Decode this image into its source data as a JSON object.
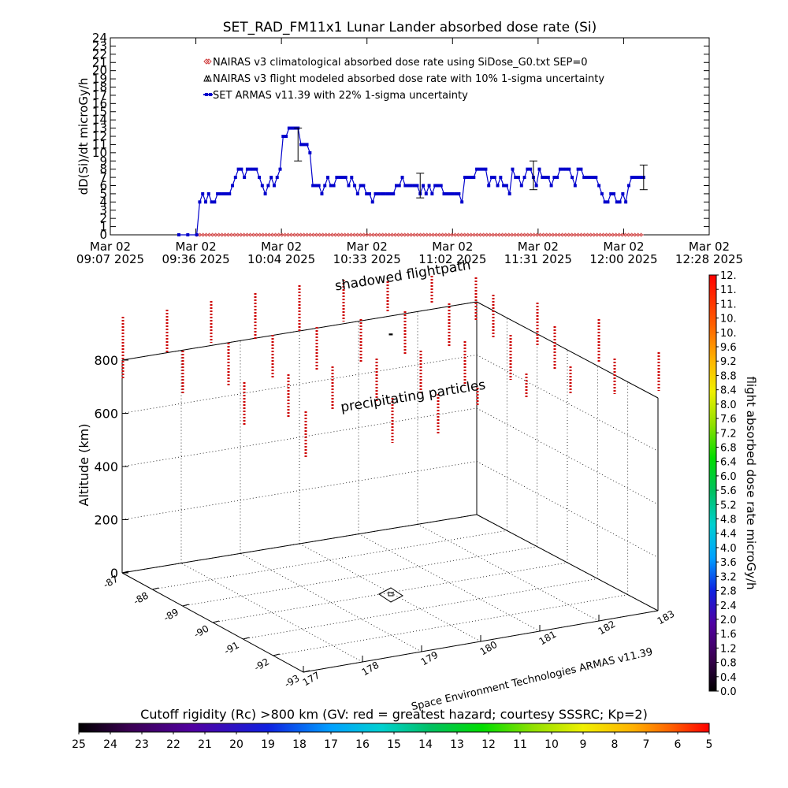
{
  "title": "SET_RAD_FM11x1  Lunar Lander absorbed dose rate (Si)",
  "chart_data": [
    {
      "type": "line",
      "ylabel": "dD(Si)/dt microGy/h",
      "ylim": [
        0,
        24
      ],
      "yticks": [
        "0",
        "1",
        "2",
        "3",
        "4",
        "5",
        "6",
        "7",
        "8",
        "9",
        "10",
        "11",
        "12",
        "13",
        "14",
        "15",
        "16",
        "17",
        "18",
        "19",
        "20",
        "21",
        "22",
        "23",
        "24"
      ],
      "xlim": [
        "09:07",
        "12:28"
      ],
      "xticks": [
        {
          "date": "Mar 02",
          "time": "09:07 2025"
        },
        {
          "date": "Mar 02",
          "time": "09:36 2025"
        },
        {
          "date": "Mar 02",
          "time": "10:04 2025"
        },
        {
          "date": "Mar 02",
          "time": "10:33 2025"
        },
        {
          "date": "Mar 02",
          "time": "11:02 2025"
        },
        {
          "date": "Mar 02",
          "time": "11:31 2025"
        },
        {
          "date": "Mar 02",
          "time": "12:00 2025"
        },
        {
          "date": "Mar 02",
          "time": "12:28 2025"
        }
      ],
      "legend": [
        {
          "name": "NAIRAS v3 climatological absorbed dose rate using SiDose_G0.txt SEP=0",
          "color": "#d04040",
          "marker": "diamond"
        },
        {
          "name": "NAIRAS v3 flight modeled absorbed dose rate with 10% 1-sigma uncertainty",
          "color": "#000000",
          "marker": "triangle"
        },
        {
          "name": "SET ARMAS v11.39 with 22% 1-sigma uncertainty",
          "color": "#0000cc",
          "marker": "square"
        }
      ],
      "series": [
        {
          "name": "SET ARMAS v11.39 with 22% 1-sigma uncertainty",
          "color": "#0000cc",
          "points": [
            [
              "09:30",
              0
            ],
            [
              "09:33",
              0
            ],
            [
              "09:36",
              0
            ],
            [
              "09:37",
              4
            ],
            [
              "09:38",
              5
            ],
            [
              "09:39",
              4
            ],
            [
              "09:40",
              5
            ],
            [
              "09:41",
              4
            ],
            [
              "09:42",
              4
            ],
            [
              "09:43",
              5
            ],
            [
              "09:44",
              5
            ],
            [
              "09:45",
              5
            ],
            [
              "09:46",
              5
            ],
            [
              "09:47",
              5
            ],
            [
              "09:48",
              6
            ],
            [
              "09:49",
              7
            ],
            [
              "09:50",
              8
            ],
            [
              "09:51",
              8
            ],
            [
              "09:52",
              7
            ],
            [
              "09:53",
              8
            ],
            [
              "09:54",
              8
            ],
            [
              "09:55",
              8
            ],
            [
              "09:56",
              8
            ],
            [
              "09:57",
              7
            ],
            [
              "09:58",
              6
            ],
            [
              "09:59",
              5
            ],
            [
              "10:00",
              6
            ],
            [
              "10:01",
              7
            ],
            [
              "10:02",
              6
            ],
            [
              "10:03",
              7
            ],
            [
              "10:04",
              8
            ],
            [
              "10:05",
              12
            ],
            [
              "10:06",
              12
            ],
            [
              "10:07",
              13
            ],
            [
              "10:08",
              13
            ],
            [
              "10:09",
              13
            ],
            [
              "10:10",
              13
            ],
            [
              "10:11",
              11
            ],
            [
              "10:12",
              11
            ],
            [
              "10:13",
              11
            ],
            [
              "10:14",
              10
            ],
            [
              "10:15",
              6
            ],
            [
              "10:16",
              6
            ],
            [
              "10:17",
              6
            ],
            [
              "10:18",
              5
            ],
            [
              "10:19",
              6
            ],
            [
              "10:20",
              7
            ],
            [
              "10:21",
              6
            ],
            [
              "10:22",
              6
            ],
            [
              "10:23",
              7
            ],
            [
              "10:24",
              7
            ],
            [
              "10:25",
              7
            ],
            [
              "10:26",
              7
            ],
            [
              "10:27",
              6
            ],
            [
              "10:28",
              7
            ],
            [
              "10:29",
              6
            ],
            [
              "10:30",
              5
            ],
            [
              "10:31",
              6
            ],
            [
              "10:32",
              6
            ],
            [
              "10:33",
              5
            ],
            [
              "10:34",
              5
            ],
            [
              "10:35",
              4
            ],
            [
              "10:36",
              5
            ],
            [
              "10:37",
              5
            ],
            [
              "10:38",
              5
            ],
            [
              "10:39",
              5
            ],
            [
              "10:40",
              5
            ],
            [
              "10:41",
              5
            ],
            [
              "10:42",
              5
            ],
            [
              "10:43",
              6
            ],
            [
              "10:44",
              6
            ],
            [
              "10:45",
              7
            ],
            [
              "10:46",
              6
            ],
            [
              "10:47",
              6
            ],
            [
              "10:48",
              6
            ],
            [
              "10:49",
              6
            ],
            [
              "10:50",
              6
            ],
            [
              "10:51",
              5
            ],
            [
              "10:52",
              6
            ],
            [
              "10:53",
              5
            ],
            [
              "10:54",
              6
            ],
            [
              "10:55",
              5
            ],
            [
              "10:56",
              6
            ],
            [
              "10:57",
              6
            ],
            [
              "10:58",
              6
            ],
            [
              "10:59",
              5
            ],
            [
              "11:00",
              5
            ],
            [
              "11:01",
              5
            ],
            [
              "11:02",
              5
            ],
            [
              "11:03",
              5
            ],
            [
              "11:04",
              5
            ],
            [
              "11:05",
              4
            ],
            [
              "11:06",
              7
            ],
            [
              "11:07",
              7
            ],
            [
              "11:08",
              7
            ],
            [
              "11:09",
              7
            ],
            [
              "11:10",
              8
            ],
            [
              "11:11",
              8
            ],
            [
              "11:12",
              8
            ],
            [
              "11:13",
              8
            ],
            [
              "11:14",
              6
            ],
            [
              "11:15",
              7
            ],
            [
              "11:16",
              7
            ],
            [
              "11:17",
              6
            ],
            [
              "11:18",
              7
            ],
            [
              "11:19",
              6
            ],
            [
              "11:20",
              6
            ],
            [
              "11:21",
              5
            ],
            [
              "11:22",
              8
            ],
            [
              "11:23",
              7
            ],
            [
              "11:24",
              7
            ],
            [
              "11:25",
              6
            ],
            [
              "11:26",
              7
            ],
            [
              "11:27",
              8
            ],
            [
              "11:28",
              8
            ],
            [
              "11:29",
              7
            ],
            [
              "11:30",
              6
            ],
            [
              "11:31",
              8
            ],
            [
              "11:32",
              7
            ],
            [
              "11:33",
              7
            ],
            [
              "11:34",
              7
            ],
            [
              "11:35",
              6
            ],
            [
              "11:36",
              7
            ],
            [
              "11:37",
              7
            ],
            [
              "11:38",
              8
            ],
            [
              "11:39",
              8
            ],
            [
              "11:40",
              8
            ],
            [
              "11:41",
              8
            ],
            [
              "11:42",
              7
            ],
            [
              "11:43",
              6
            ],
            [
              "11:44",
              8
            ],
            [
              "11:45",
              8
            ],
            [
              "11:46",
              7
            ],
            [
              "11:47",
              7
            ],
            [
              "11:48",
              7
            ],
            [
              "11:49",
              7
            ],
            [
              "11:50",
              7
            ],
            [
              "11:51",
              6
            ],
            [
              "11:52",
              5
            ],
            [
              "11:53",
              4
            ],
            [
              "11:54",
              4
            ],
            [
              "11:55",
              5
            ],
            [
              "11:56",
              5
            ],
            [
              "11:57",
              4
            ],
            [
              "11:58",
              4
            ],
            [
              "11:59",
              5
            ],
            [
              "12:00",
              4
            ],
            [
              "12:01",
              6
            ],
            [
              "12:02",
              7
            ],
            [
              "12:03",
              7
            ],
            [
              "12:04",
              7
            ],
            [
              "12:05",
              7
            ],
            [
              "12:06",
              7
            ]
          ],
          "error_bars": [
            {
              "x": "10:10",
              "low": 9,
              "high": 13
            },
            {
              "x": "10:51",
              "low": 4.5,
              "high": 7.5
            },
            {
              "x": "11:29",
              "low": 5.5,
              "high": 9
            },
            {
              "x": "12:06",
              "low": 5.5,
              "high": 8.5
            }
          ]
        },
        {
          "name": "NAIRAS v3 climatological absorbed dose rate using SiDose_G0.txt SEP=0",
          "color": "#d04040",
          "constant": 0,
          "from": "09:36",
          "to": "12:06"
        }
      ]
    },
    {
      "type": "scatter",
      "zlabel": "Altitude (km)",
      "zlim": [
        0,
        800
      ],
      "zticks": [
        "0",
        "200",
        "400",
        "600",
        "800"
      ],
      "lat_ticks": [
        "-87",
        "-88",
        "-89",
        "-90",
        "-91",
        "-92",
        "-93"
      ],
      "lon_ticks": [
        "177",
        "178",
        "179",
        "180",
        "181",
        "182",
        "183"
      ],
      "annotations": [
        "shadowed flightpath",
        "precipitating particles",
        "-"
      ],
      "credit": "Space Environment Technologies ARMAS v11.39",
      "marker_color": "#cc0000"
    }
  ],
  "colorbar_right": {
    "label": "flight absorbed dose rate microGy/h",
    "ticks": [
      "0.0",
      "0.4",
      "0.8",
      "1.2",
      "1.6",
      "2.0",
      "2.4",
      "2.8",
      "3.2",
      "3.6",
      "4.0",
      "4.4",
      "4.8",
      "5.2",
      "5.6",
      "6.0",
      "6.4",
      "6.8",
      "7.2",
      "7.6",
      "8.0",
      "8.4",
      "8.8",
      "9.2",
      "9.6",
      "10.",
      "10.",
      "11.",
      "11.",
      "12."
    ]
  },
  "colorbar_bottom": {
    "label": "Cutoff rigidity (Rc) >800 km (GV: red = greatest hazard; courtesy SSSRC; Kp=2)",
    "ticks": [
      "25",
      "24",
      "23",
      "22",
      "21",
      "20",
      "19",
      "18",
      "17",
      "16",
      "15",
      "14",
      "13",
      "12",
      "11",
      "10",
      "9",
      "8",
      "7",
      "6",
      "5"
    ]
  }
}
